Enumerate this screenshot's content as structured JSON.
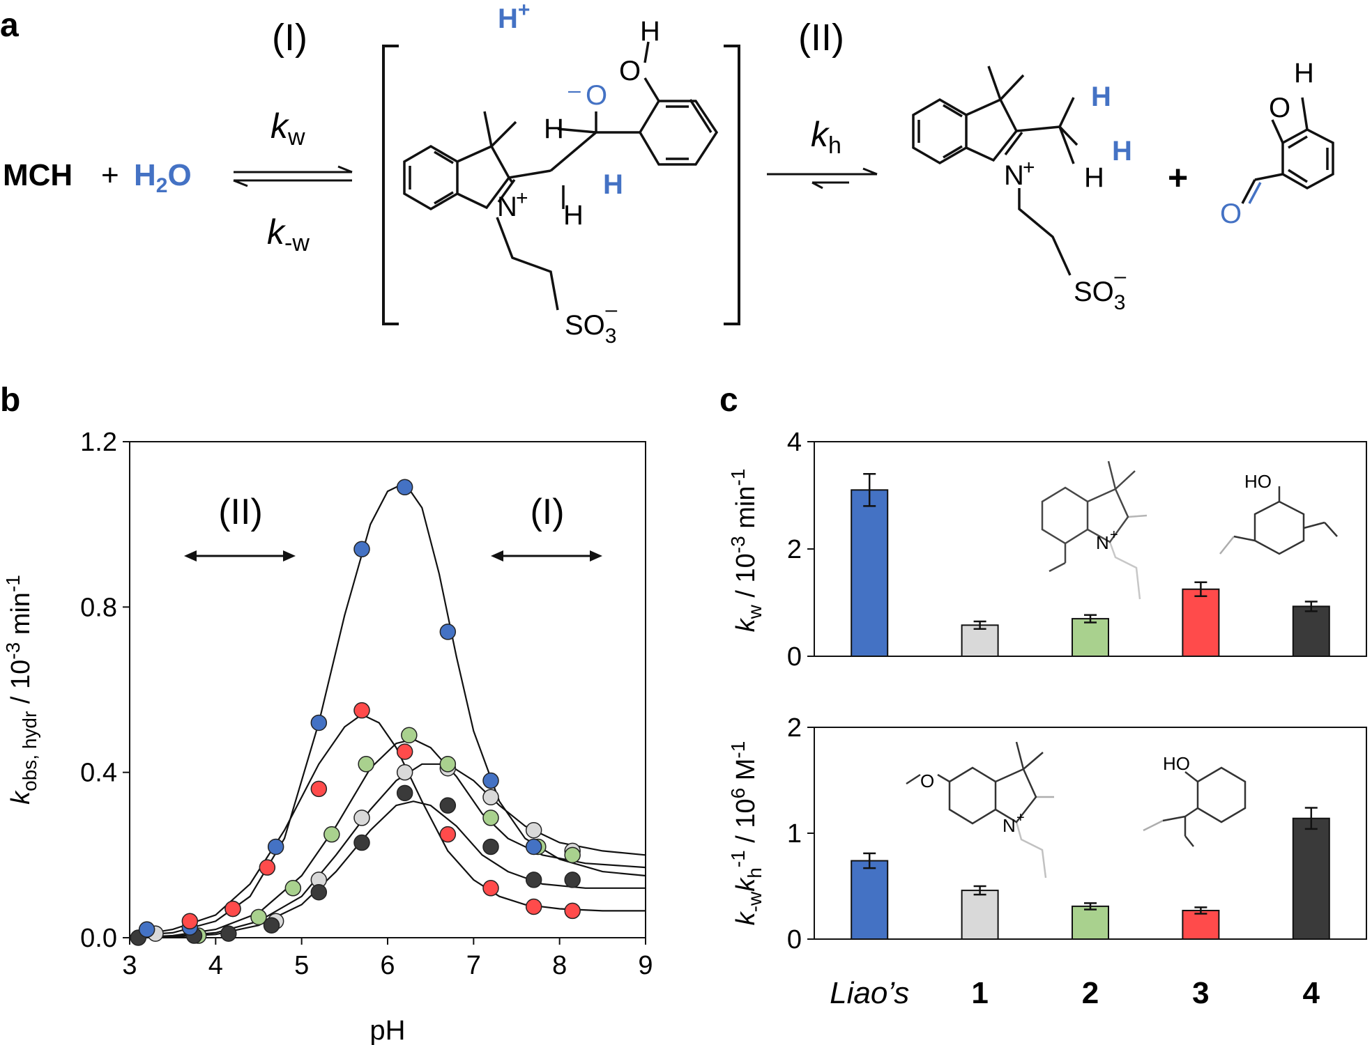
{
  "panels": {
    "a": "a",
    "b": "b",
    "c": "c"
  },
  "scheme": {
    "reactant_mch": "MCH",
    "plus": "+",
    "water": "H",
    "water_sub": "2",
    "water_o": "O",
    "step1": "(I)",
    "step2": "(II)",
    "kw": "k",
    "kw_sub": "w",
    "kmw": "k",
    "kmw_sub": "-w",
    "kh": "k",
    "kh_sub": "h",
    "proton": "H",
    "proton_sup": "+",
    "atoms": {
      "H": "H",
      "O": "O",
      "N": "N",
      "plus": "+",
      "minus": "–",
      "so3": "SO",
      "so3_sub": "3",
      "so3_sup": "–"
    }
  },
  "colors": {
    "blue": "#4472C4",
    "gray": "#D9D9D9",
    "green": "#A9D18E",
    "red": "#FF4B4B",
    "dark": "#3A3A3A",
    "text_blue": "#4472C4"
  },
  "chart_data": [
    {
      "type": "scatter",
      "panel": "b",
      "xlabel": "pH",
      "ylabel_main": "k",
      "ylabel_sub": "obs, hydr",
      "ylabel_unit": " / 10",
      "ylabel_exp": "-3",
      "ylabel_tail": " min",
      "ylabel_tail_exp": "-1",
      "xlim": [
        3,
        9
      ],
      "ylim": [
        0,
        1.2
      ],
      "xticks": [
        "3",
        "4",
        "5",
        "6",
        "7",
        "8",
        "9"
      ],
      "yticks": [
        "0.0",
        "0.4",
        "0.8",
        "1.2"
      ],
      "annotations": [
        "(II)",
        "(I)"
      ],
      "series": [
        {
          "color": "#4472C4",
          "x": [
            3.2,
            3.7,
            4.2,
            4.7,
            5.2,
            5.7,
            6.2,
            6.7,
            7.2,
            7.7
          ],
          "y": [
            0.02,
            0.025,
            0.07,
            0.22,
            0.52,
            0.94,
            1.09,
            0.74,
            0.38,
            0.22
          ],
          "fit_x": [
            3.0,
            3.5,
            4.0,
            4.4,
            4.8,
            5.2,
            5.5,
            5.8,
            6.0,
            6.2,
            6.4,
            6.6,
            6.8,
            7.0,
            7.3,
            7.6,
            8.0,
            8.5,
            9.0
          ],
          "fit_y": [
            0.005,
            0.012,
            0.04,
            0.1,
            0.24,
            0.52,
            0.78,
            1.0,
            1.08,
            1.1,
            1.04,
            0.88,
            0.68,
            0.5,
            0.33,
            0.24,
            0.19,
            0.16,
            0.15
          ]
        },
        {
          "color": "#FF4B4B",
          "x": [
            3.7,
            4.2,
            4.6,
            5.2,
            5.7,
            6.2,
            6.7,
            7.2,
            7.7,
            8.15
          ],
          "y": [
            0.04,
            0.07,
            0.17,
            0.36,
            0.55,
            0.45,
            0.25,
            0.12,
            0.075,
            0.065
          ],
          "fit_x": [
            3.0,
            3.5,
            4.0,
            4.4,
            4.8,
            5.2,
            5.5,
            5.7,
            5.9,
            6.1,
            6.4,
            6.7,
            7.0,
            7.3,
            7.6,
            8.0,
            8.5,
            9.0
          ],
          "fit_y": [
            0.003,
            0.02,
            0.055,
            0.13,
            0.26,
            0.42,
            0.51,
            0.54,
            0.52,
            0.46,
            0.33,
            0.21,
            0.14,
            0.1,
            0.08,
            0.07,
            0.065,
            0.065
          ]
        },
        {
          "color": "#A9D18E",
          "x": [
            3.8,
            4.5,
            4.9,
            5.35,
            5.75,
            6.25,
            6.7,
            7.2,
            7.75,
            8.15
          ],
          "y": [
            0.005,
            0.05,
            0.12,
            0.25,
            0.42,
            0.49,
            0.42,
            0.29,
            0.22,
            0.2
          ],
          "fit_x": [
            3.0,
            3.5,
            4.0,
            4.5,
            5.0,
            5.4,
            5.8,
            6.1,
            6.3,
            6.5,
            6.8,
            7.1,
            7.4,
            7.8,
            8.3,
            9.0
          ],
          "fit_y": [
            0.0,
            0.005,
            0.02,
            0.06,
            0.15,
            0.27,
            0.41,
            0.47,
            0.48,
            0.46,
            0.39,
            0.3,
            0.24,
            0.2,
            0.18,
            0.17
          ]
        },
        {
          "color": "#D9D9D9",
          "x": [
            3.3,
            4.7,
            5.2,
            5.7,
            6.2,
            6.7,
            7.2,
            7.7,
            8.15
          ],
          "y": [
            0.01,
            0.04,
            0.14,
            0.29,
            0.4,
            0.41,
            0.34,
            0.26,
            0.21
          ],
          "fit_x": [
            3.0,
            3.5,
            4.0,
            4.5,
            5.0,
            5.4,
            5.8,
            6.1,
            6.4,
            6.7,
            7.0,
            7.3,
            7.6,
            8.0,
            8.5,
            9.0
          ],
          "fit_y": [
            0.0,
            0.003,
            0.012,
            0.04,
            0.1,
            0.2,
            0.31,
            0.38,
            0.42,
            0.42,
            0.38,
            0.32,
            0.27,
            0.23,
            0.21,
            0.2
          ]
        },
        {
          "color": "#3A3A3A",
          "x": [
            3.1,
            3.75,
            4.15,
            4.65,
            5.2,
            5.7,
            6.2,
            6.7,
            7.2,
            7.7,
            8.15
          ],
          "y": [
            0.0,
            0.005,
            0.01,
            0.03,
            0.11,
            0.23,
            0.35,
            0.32,
            0.22,
            0.14,
            0.14
          ],
          "fit_x": [
            3.0,
            3.5,
            4.0,
            4.5,
            5.0,
            5.4,
            5.8,
            6.1,
            6.3,
            6.5,
            6.8,
            7.1,
            7.4,
            7.8,
            8.3,
            9.0
          ],
          "fit_y": [
            0.0,
            0.002,
            0.008,
            0.03,
            0.08,
            0.16,
            0.26,
            0.32,
            0.33,
            0.32,
            0.27,
            0.2,
            0.16,
            0.13,
            0.12,
            0.12
          ]
        }
      ]
    },
    {
      "type": "bar",
      "panel": "c-top",
      "categories": [
        "Liao’s",
        "1",
        "2",
        "3",
        "4"
      ],
      "values": [
        3.1,
        0.58,
        0.7,
        1.25,
        0.93
      ],
      "errors": [
        0.3,
        0.07,
        0.07,
        0.13,
        0.09
      ],
      "colors": [
        "#4472C4",
        "#D9D9D9",
        "#A9D18E",
        "#FF4B4B",
        "#3A3A3A"
      ],
      "ylim": [
        0,
        4
      ],
      "yticks": [
        "0",
        "2",
        "4"
      ],
      "ylabel_main": "k",
      "ylabel_sub": "w",
      "ylabel_unit": " / 10",
      "ylabel_exp": "-3",
      "ylabel_tail": " min",
      "ylabel_tail_exp": "-1",
      "inset_labels": [
        "HO",
        "N",
        "+"
      ]
    },
    {
      "type": "bar",
      "panel": "c-bottom",
      "categories": [
        "Liao’s",
        "1",
        "2",
        "3",
        "4"
      ],
      "values": [
        0.74,
        0.46,
        0.31,
        0.27,
        1.14
      ],
      "errors": [
        0.07,
        0.04,
        0.03,
        0.03,
        0.1
      ],
      "colors": [
        "#4472C4",
        "#D9D9D9",
        "#A9D18E",
        "#FF4B4B",
        "#3A3A3A"
      ],
      "ylim": [
        0,
        2
      ],
      "yticks": [
        "0",
        "1",
        "2"
      ],
      "ylabel_main": "k",
      "ylabel_sub": "-w",
      "ylabel_main2": "k",
      "ylabel_sub2": "h",
      "ylabel_sup2": "-1",
      "ylabel_unit": " / 10",
      "ylabel_exp": "6",
      "ylabel_tail": " M",
      "ylabel_tail_exp": "-1",
      "inset_labels": [
        "HO",
        "N",
        "+"
      ]
    }
  ]
}
